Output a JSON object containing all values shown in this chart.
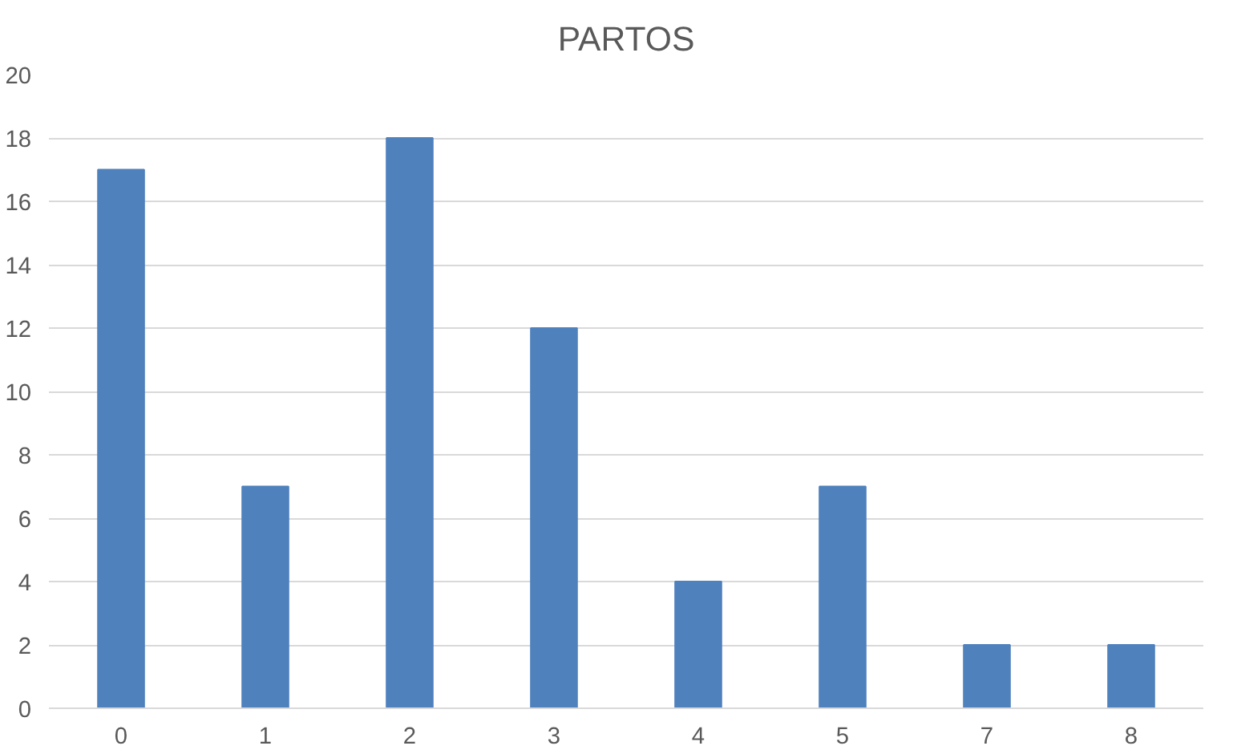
{
  "chart_data": {
    "type": "bar",
    "title": "PARTOS",
    "categories": [
      "0",
      "1",
      "2",
      "3",
      "4",
      "5",
      "7",
      "8"
    ],
    "values": [
      17,
      7,
      18,
      12,
      4,
      7,
      2,
      2
    ],
    "color": "#4f81bd",
    "ylim": [
      0,
      20
    ],
    "yticks": [
      0,
      2,
      4,
      6,
      8,
      10,
      12,
      14,
      16,
      18,
      20
    ],
    "grid": "y"
  }
}
